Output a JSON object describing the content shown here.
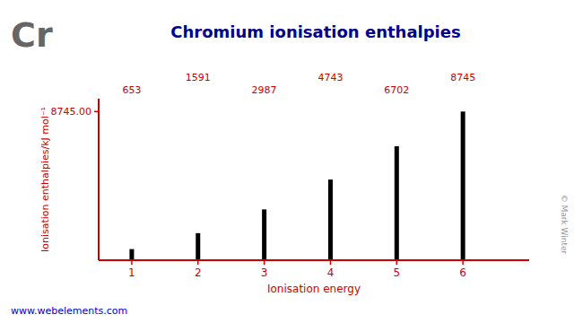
{
  "chart_data": {
    "type": "bar",
    "title": "Chromium ionisation enthalpies",
    "xlabel": "Ionisation energy",
    "ylabel": "Ionisation enthalpies/kJ mol⁻¹",
    "x": [
      1,
      2,
      3,
      4,
      5,
      6
    ],
    "values": [
      653,
      1591,
      2987,
      4743,
      6702,
      8745
    ],
    "color": "#000000",
    "xlim": [
      0.5,
      7.0
    ],
    "xticks": [
      1,
      2,
      3,
      4,
      5,
      6
    ],
    "ylim": [
      0,
      9500
    ],
    "yticks": [
      {
        "value": 8745,
        "label": "8745.00"
      }
    ],
    "data_labels": true,
    "grid": false,
    "annotations": [
      "Cr",
      "www.webelements.com",
      "© Mark Winter"
    ]
  }
}
